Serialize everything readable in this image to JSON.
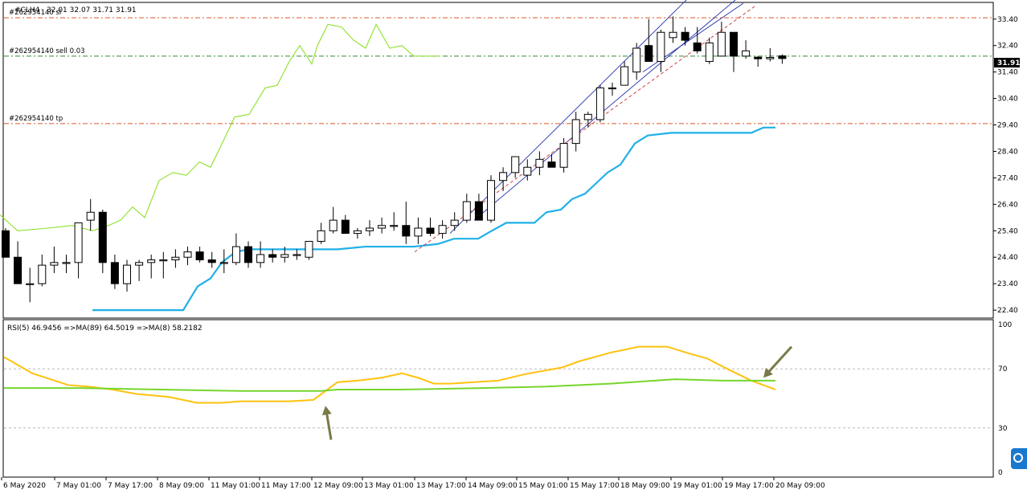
{
  "chart_data": [
    {
      "type": "candlestick",
      "header": "#CLH4",
      "header_ohlc": "32.01 32.07 31.71 31.91",
      "current_price": "31.91",
      "ylim": [
        22.1,
        34.0
      ],
      "y_ticks": [
        "22.40",
        "23.40",
        "24.40",
        "25.40",
        "26.40",
        "27.40",
        "28.40",
        "29.40",
        "30.40",
        "31.40",
        "32.40",
        "33.40"
      ],
      "x_labels": [
        "6 May 2020",
        "7 May 01:00",
        "7 May 17:00",
        "8 May 09:00",
        "11 May 01:00",
        "11 May 17:00",
        "12 May 09:00",
        "13 May 01:00",
        "13 May 17:00",
        "14 May 09:00",
        "15 May 01:00",
        "15 May 17:00",
        "18 May 09:00",
        "19 May 01:00",
        "19 May 17:00",
        "20 May 09:00"
      ],
      "levels": [
        {
          "label": "#262954140 sl",
          "value": 33.45,
          "color": "#d85a2a"
        },
        {
          "label": "#262954140 sell 0.03",
          "value": 32.0,
          "color": "#2e8b2e"
        },
        {
          "label": "#262954140 tp",
          "value": 29.45,
          "color": "#d85a2a"
        }
      ],
      "candles": [
        [
          25.4,
          25.5,
          24.4,
          24.4
        ],
        [
          24.4,
          25.0,
          23.4,
          23.4
        ],
        [
          23.4,
          24.0,
          22.7,
          23.4
        ],
        [
          23.4,
          24.5,
          23.3,
          24.1
        ],
        [
          24.1,
          24.8,
          23.8,
          24.2
        ],
        [
          24.2,
          24.5,
          23.8,
          24.2
        ],
        [
          24.2,
          25.7,
          23.6,
          25.7
        ],
        [
          25.8,
          26.6,
          25.4,
          26.1
        ],
        [
          26.1,
          26.2,
          23.8,
          24.2
        ],
        [
          24.2,
          24.5,
          23.2,
          23.4
        ],
        [
          23.4,
          24.3,
          23.1,
          24.1
        ],
        [
          24.1,
          24.3,
          23.5,
          24.2
        ],
        [
          24.2,
          24.5,
          23.6,
          24.3
        ],
        [
          24.3,
          24.6,
          23.6,
          24.3
        ],
        [
          24.3,
          24.7,
          24.0,
          24.4
        ],
        [
          24.4,
          24.8,
          24.1,
          24.6
        ],
        [
          24.6,
          24.8,
          24.2,
          24.3
        ],
        [
          24.3,
          24.6,
          24.0,
          24.2
        ],
        [
          24.2,
          24.7,
          23.8,
          24.2
        ],
        [
          24.2,
          25.3,
          24.1,
          24.8
        ],
        [
          24.8,
          25.0,
          24.0,
          24.2
        ],
        [
          24.2,
          25.0,
          24.0,
          24.5
        ],
        [
          24.5,
          24.7,
          24.2,
          24.4
        ],
        [
          24.4,
          24.8,
          24.2,
          24.5
        ],
        [
          24.5,
          24.7,
          24.3,
          24.5
        ],
        [
          24.4,
          25.0,
          24.3,
          25.0
        ],
        [
          25.0,
          25.7,
          24.9,
          25.4
        ],
        [
          25.4,
          26.3,
          25.3,
          25.8
        ],
        [
          25.8,
          26.0,
          25.3,
          25.3
        ],
        [
          25.3,
          25.5,
          25.1,
          25.4
        ],
        [
          25.4,
          25.8,
          25.2,
          25.5
        ],
        [
          25.5,
          25.9,
          25.3,
          25.6
        ],
        [
          25.6,
          26.1,
          25.4,
          25.6
        ],
        [
          25.6,
          26.5,
          24.9,
          25.2
        ],
        [
          25.2,
          25.9,
          24.9,
          25.5
        ],
        [
          25.5,
          25.9,
          25.2,
          25.3
        ],
        [
          25.3,
          25.8,
          25.1,
          25.6
        ],
        [
          25.6,
          26.1,
          25.4,
          25.8
        ],
        [
          25.8,
          26.8,
          25.7,
          26.5
        ],
        [
          26.5,
          26.8,
          25.9,
          25.8
        ],
        [
          25.8,
          27.5,
          25.7,
          27.3
        ],
        [
          27.3,
          27.8,
          26.9,
          27.6
        ],
        [
          27.6,
          28.1,
          27.4,
          28.2
        ],
        [
          27.5,
          28.1,
          27.3,
          27.8
        ],
        [
          27.8,
          28.4,
          27.5,
          28.1
        ],
        [
          28.0,
          28.3,
          27.8,
          27.8
        ],
        [
          27.8,
          28.9,
          27.6,
          28.7
        ],
        [
          28.7,
          29.9,
          28.4,
          29.6
        ],
        [
          29.6,
          29.9,
          29.3,
          29.8
        ],
        [
          29.6,
          30.9,
          29.5,
          30.8
        ],
        [
          30.8,
          31.0,
          30.5,
          30.8
        ],
        [
          30.9,
          31.8,
          30.9,
          31.6
        ],
        [
          31.4,
          32.5,
          31.1,
          32.3
        ],
        [
          32.4,
          33.4,
          31.9,
          31.8
        ],
        [
          31.8,
          33.0,
          31.4,
          32.9
        ],
        [
          32.7,
          33.5,
          32.5,
          32.9
        ],
        [
          32.9,
          33.1,
          32.4,
          32.6
        ],
        [
          32.5,
          33.1,
          32.1,
          32.2
        ],
        [
          31.8,
          32.7,
          31.7,
          32.5
        ],
        [
          32.0,
          33.3,
          32.0,
          32.9
        ],
        [
          32.9,
          32.9,
          31.4,
          32.0
        ],
        [
          32.0,
          32.6,
          31.9,
          32.2
        ],
        [
          31.96,
          32.0,
          31.6,
          31.9
        ],
        [
          31.9,
          32.3,
          31.8,
          31.95
        ],
        [
          32.01,
          32.07,
          31.71,
          31.91
        ]
      ],
      "band_lower": [
        [
          115,
          22.4
        ],
        [
          228,
          22.4
        ],
        [
          246,
          23.3
        ],
        [
          262,
          23.6
        ],
        [
          276,
          24.2
        ],
        [
          293,
          24.6
        ],
        [
          310,
          24.7
        ],
        [
          420,
          24.7
        ],
        [
          455,
          24.8
        ],
        [
          515,
          24.8
        ],
        [
          545,
          24.9
        ],
        [
          565,
          25.1
        ],
        [
          595,
          25.1
        ],
        [
          612,
          25.4
        ],
        [
          630,
          25.7
        ],
        [
          665,
          25.7
        ],
        [
          680,
          26.1
        ],
        [
          698,
          26.2
        ],
        [
          712,
          26.6
        ],
        [
          728,
          26.8
        ],
        [
          742,
          27.2
        ],
        [
          756,
          27.6
        ],
        [
          772,
          27.9
        ],
        [
          790,
          28.7
        ],
        [
          806,
          29.0
        ],
        [
          835,
          29.1
        ],
        [
          935,
          29.1
        ],
        [
          950,
          29.3
        ],
        [
          965,
          29.3
        ]
      ],
      "band_upper": [
        [
          0,
          26.0
        ],
        [
          22,
          25.4
        ],
        [
          60,
          25.5
        ],
        [
          90,
          25.6
        ],
        [
          115,
          25.4
        ],
        [
          135,
          25.6
        ],
        [
          150,
          25.8
        ],
        [
          165,
          26.3
        ],
        [
          180,
          25.9
        ],
        [
          198,
          27.3
        ],
        [
          215,
          27.6
        ],
        [
          232,
          27.5
        ],
        [
          248,
          28.0
        ],
        [
          262,
          27.8
        ],
        [
          278,
          28.8
        ],
        [
          292,
          29.7
        ],
        [
          310,
          29.8
        ],
        [
          330,
          30.8
        ],
        [
          345,
          30.9
        ],
        [
          360,
          31.8
        ],
        [
          373,
          32.4
        ],
        [
          388,
          31.7
        ],
        [
          395,
          32.4
        ],
        [
          408,
          33.2
        ],
        [
          425,
          33.1
        ],
        [
          440,
          32.6
        ],
        [
          455,
          32.3
        ],
        [
          468,
          33.2
        ],
        [
          485,
          32.3
        ],
        [
          500,
          32.4
        ],
        [
          515,
          32.0
        ],
        [
          548,
          32.0
        ]
      ],
      "trend_lines": [
        {
          "color": "#2233aa",
          "dash": false,
          "points": [
            [
              560,
              25.3
            ],
            [
              860,
              34.3
            ]
          ]
        },
        {
          "color": "#2233aa",
          "dash": false,
          "points": [
            [
              590,
              25.8
            ],
            [
              922,
              34.3
            ]
          ]
        },
        {
          "color": "#2233aa",
          "dash": false,
          "points": [
            [
              800,
              31.4
            ],
            [
              925,
              34.0
            ]
          ]
        },
        {
          "color": "#cc3030",
          "dash": true,
          "points": [
            [
              516,
              24.6
            ],
            [
              940,
              33.9
            ]
          ]
        }
      ]
    },
    {
      "type": "line",
      "label": "RSI(5) 46.9456 =>MA(89) 64.5019 =>MA(8) 58.2182",
      "ylim": [
        0,
        100
      ],
      "y_ticks": [
        "0",
        "30",
        "70",
        "100"
      ],
      "levels": [
        30,
        70
      ],
      "series": [
        {
          "color": "#ffc20e",
          "points": [
            [
              5,
              78
            ],
            [
              40,
              67
            ],
            [
              85,
              59
            ],
            [
              110,
              58
            ],
            [
              140,
              56
            ],
            [
              170,
              53
            ],
            [
              210,
              51
            ],
            [
              245,
              47
            ],
            [
              275,
              47
            ],
            [
              300,
              48
            ],
            [
              360,
              48
            ],
            [
              390,
              49
            ],
            [
              405,
              55
            ],
            [
              420,
              61
            ],
            [
              445,
              62
            ],
            [
              475,
              64
            ],
            [
              500,
              67
            ],
            [
              520,
              64
            ],
            [
              540,
              60
            ],
            [
              560,
              60
            ],
            [
              590,
              61
            ],
            [
              620,
              62
            ],
            [
              650,
              66
            ],
            [
              680,
              69
            ],
            [
              700,
              71
            ],
            [
              720,
              75
            ],
            [
              760,
              81
            ],
            [
              795,
              85
            ],
            [
              830,
              85
            ],
            [
              860,
              80
            ],
            [
              880,
              77
            ],
            [
              905,
              70
            ],
            [
              935,
              62
            ],
            [
              950,
              59
            ],
            [
              965,
              56
            ]
          ]
        },
        {
          "color": "#76d62c",
          "points": [
            [
              5,
              57
            ],
            [
              50,
              57
            ],
            [
              100,
              57
            ],
            [
              200,
              56
            ],
            [
              300,
              55
            ],
            [
              400,
              55
            ],
            [
              420,
              56
            ],
            [
              500,
              56
            ],
            [
              600,
              57
            ],
            [
              680,
              58
            ],
            [
              760,
              60
            ],
            [
              840,
              63
            ],
            [
              900,
              62
            ],
            [
              940,
              62
            ],
            [
              965,
              62
            ]
          ]
        }
      ],
      "arrows": [
        {
          "tip": [
            405,
            45
          ],
          "tail": [
            412,
            22
          ]
        },
        {
          "tip": [
            950,
            64
          ],
          "tail": [
            985,
            85
          ]
        }
      ]
    }
  ]
}
